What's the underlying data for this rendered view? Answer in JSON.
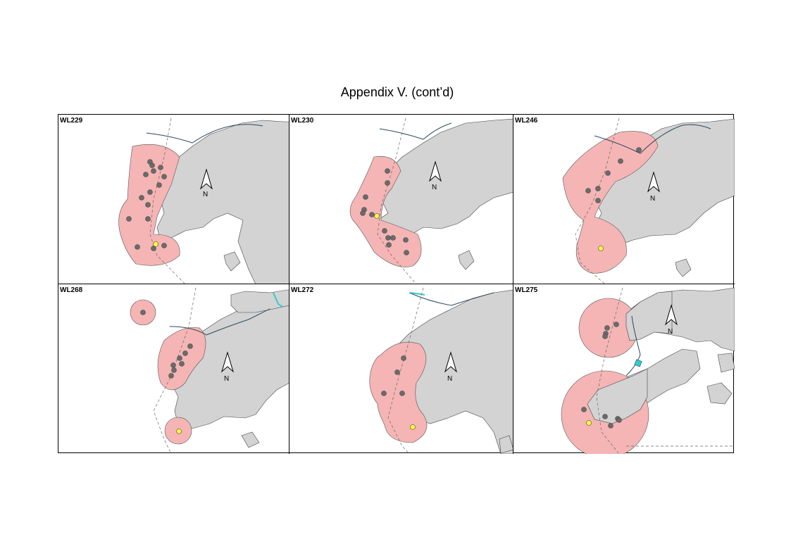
{
  "page": {
    "title": "Appendix V.  (cont’d)"
  },
  "colors": {
    "land": "#d3d3d3",
    "home_range": "#f5b5b5",
    "home_range_edge": "#555555",
    "location_point": "#6b6b6b",
    "capture_point": "#ffff33",
    "road": "#2b4a5a",
    "water_feature": "#33cccc"
  },
  "north_arrow": {
    "label": "N",
    "icon": "north-arrow-icon"
  },
  "panels": [
    {
      "id": "WL229"
    },
    {
      "id": "WL230"
    },
    {
      "id": "WL246"
    },
    {
      "id": "WL268"
    },
    {
      "id": "WL272"
    },
    {
      "id": "WL275"
    }
  ]
}
